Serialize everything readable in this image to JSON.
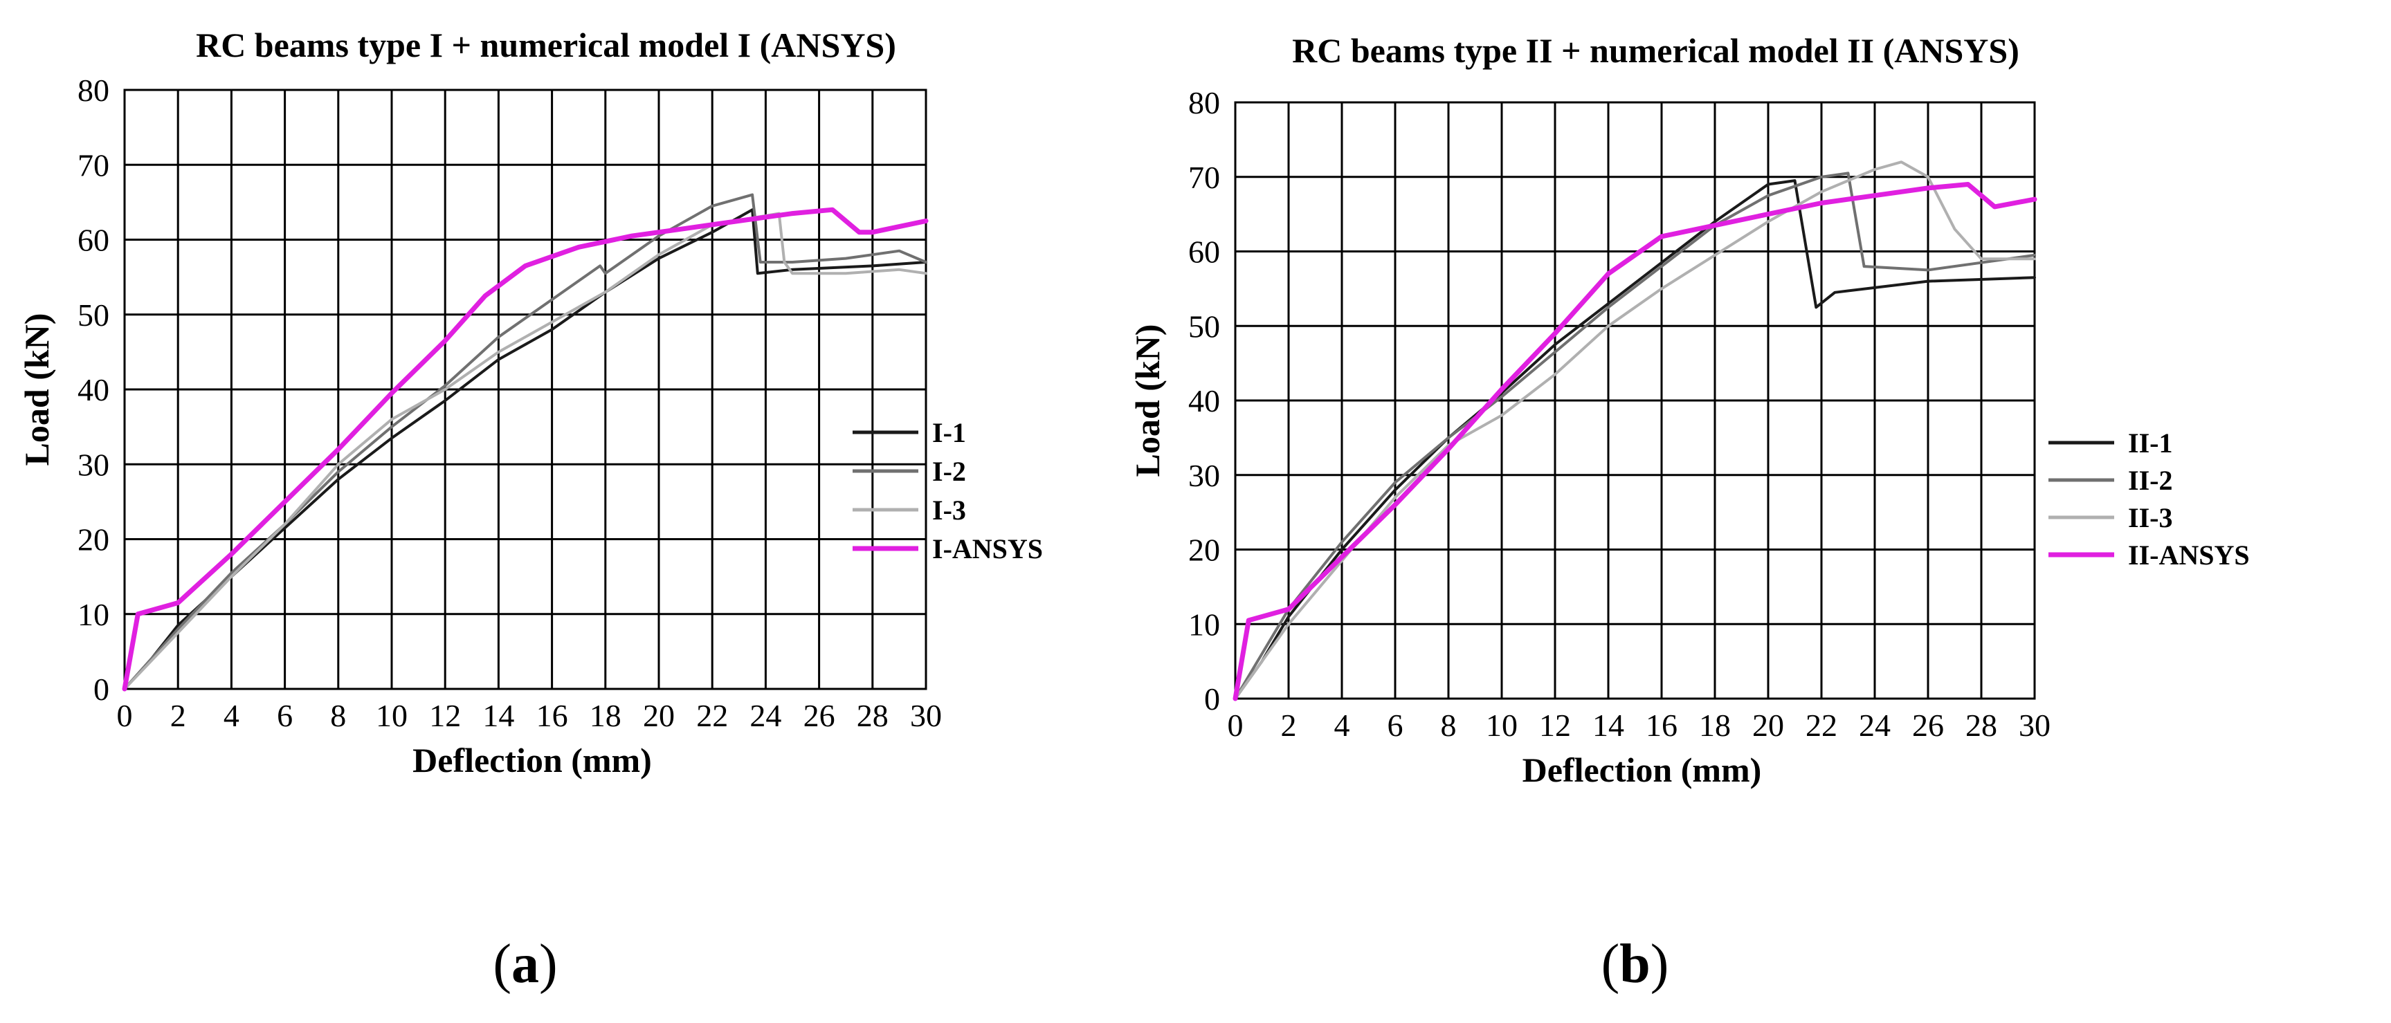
{
  "chart_data": [
    {
      "type": "line",
      "title": "RC beams type I + numerical model I (ANSYS)",
      "xlabel": "Deflection (mm)",
      "ylabel": "Load (kN)",
      "xlim": [
        0,
        30
      ],
      "ylim": [
        0,
        80
      ],
      "xticks": [
        "0",
        "2",
        "4",
        "6",
        "8",
        "10",
        "12",
        "14",
        "16",
        "18",
        "20",
        "22",
        "24",
        "26",
        "28",
        "30"
      ],
      "yticks": [
        "0",
        "10",
        "20",
        "30",
        "40",
        "50",
        "60",
        "70",
        "80"
      ],
      "grid": true,
      "legend_position": "right",
      "caption": {
        "open": "(",
        "letter": "a",
        "close": ")"
      },
      "series": [
        {
          "name": "I-1",
          "color": "#1a1a1a",
          "points": [
            [
              0,
              0
            ],
            [
              1,
              4
            ],
            [
              2,
              8.5
            ],
            [
              4,
              15
            ],
            [
              6,
              21.5
            ],
            [
              8,
              28
            ],
            [
              10,
              33.5
            ],
            [
              12,
              38.5
            ],
            [
              14,
              44
            ],
            [
              16,
              48
            ],
            [
              18,
              53
            ],
            [
              20,
              57.5
            ],
            [
              22,
              61
            ],
            [
              23.5,
              64
            ],
            [
              23.7,
              55.5
            ],
            [
              25,
              56
            ],
            [
              28,
              56.5
            ],
            [
              30,
              57
            ]
          ]
        },
        {
          "name": "I-2",
          "color": "#707070",
          "points": [
            [
              0,
              0
            ],
            [
              2,
              8
            ],
            [
              4,
              15.5
            ],
            [
              6,
              22
            ],
            [
              8,
              29
            ],
            [
              10,
              35
            ],
            [
              12,
              40.5
            ],
            [
              14,
              47
            ],
            [
              16,
              52
            ],
            [
              17.8,
              56.5
            ],
            [
              18,
              55.5
            ],
            [
              20,
              60.5
            ],
            [
              22,
              64.5
            ],
            [
              23.5,
              66
            ],
            [
              23.8,
              57
            ],
            [
              25,
              57
            ],
            [
              27,
              57.5
            ],
            [
              29,
              58.5
            ],
            [
              30,
              57
            ]
          ]
        },
        {
          "name": "I-3",
          "color": "#b0b0b0",
          "points": [
            [
              0,
              0
            ],
            [
              2,
              7.5
            ],
            [
              4,
              15
            ],
            [
              6,
              22
            ],
            [
              8,
              30
            ],
            [
              10,
              36
            ],
            [
              12,
              40
            ],
            [
              14,
              45
            ],
            [
              16,
              49
            ],
            [
              18,
              53
            ],
            [
              20,
              58
            ],
            [
              22,
              62
            ],
            [
              24.5,
              63.5
            ],
            [
              24.7,
              57
            ],
            [
              25,
              55.5
            ],
            [
              27,
              55.5
            ],
            [
              29,
              56
            ],
            [
              30,
              55.5
            ]
          ]
        },
        {
          "name": "I-ANSYS",
          "color": "#e020e0",
          "points": [
            [
              0,
              0
            ],
            [
              0.5,
              10
            ],
            [
              2,
              11.5
            ],
            [
              4,
              18
            ],
            [
              6,
              25
            ],
            [
              8,
              32
            ],
            [
              10,
              39.5
            ],
            [
              12,
              46.5
            ],
            [
              13.5,
              52.5
            ],
            [
              15,
              56.5
            ],
            [
              17,
              59
            ],
            [
              19,
              60.5
            ],
            [
              21,
              61.5
            ],
            [
              23,
              62.5
            ],
            [
              25,
              63.5
            ],
            [
              26.5,
              64
            ],
            [
              27.5,
              61
            ],
            [
              28,
              61
            ],
            [
              30,
              62.5
            ]
          ]
        }
      ]
    },
    {
      "type": "line",
      "title": "RC beams type II + numerical model II (ANSYS)",
      "xlabel": "Deflection (mm)",
      "ylabel": "Load (kN)",
      "xlim": [
        0,
        30
      ],
      "ylim": [
        0,
        80
      ],
      "xticks": [
        "0",
        "2",
        "4",
        "6",
        "8",
        "10",
        "12",
        "14",
        "16",
        "18",
        "20",
        "22",
        "24",
        "26",
        "28",
        "30"
      ],
      "yticks": [
        "0",
        "10",
        "20",
        "30",
        "40",
        "50",
        "60",
        "70",
        "80"
      ],
      "grid": true,
      "legend_position": "right",
      "caption": {
        "open": "(",
        "letter": "b",
        "close": ")"
      },
      "series": [
        {
          "name": "II-1",
          "color": "#1a1a1a",
          "points": [
            [
              0,
              0
            ],
            [
              1,
              5
            ],
            [
              2,
              11
            ],
            [
              4,
              20
            ],
            [
              6,
              28
            ],
            [
              8,
              35
            ],
            [
              10,
              41
            ],
            [
              12,
              47.5
            ],
            [
              14,
              53
            ],
            [
              16,
              58.5
            ],
            [
              18,
              64
            ],
            [
              20,
              69
            ],
            [
              21,
              69.5
            ],
            [
              21.8,
              52.5
            ],
            [
              22.5,
              54.5
            ],
            [
              26,
              56
            ],
            [
              30,
              56.5
            ]
          ]
        },
        {
          "name": "II-2",
          "color": "#707070",
          "points": [
            [
              0,
              0
            ],
            [
              2,
              12
            ],
            [
              4,
              21
            ],
            [
              6,
              29
            ],
            [
              8,
              35
            ],
            [
              10,
              40.5
            ],
            [
              12,
              46.5
            ],
            [
              14,
              52.5
            ],
            [
              16,
              58
            ],
            [
              18,
              63.5
            ],
            [
              20,
              67.5
            ],
            [
              22,
              70
            ],
            [
              23,
              70.5
            ],
            [
              23.6,
              58
            ],
            [
              26,
              57.5
            ],
            [
              28,
              58.5
            ],
            [
              30,
              59.5
            ]
          ]
        },
        {
          "name": "II-3",
          "color": "#b0b0b0",
          "points": [
            [
              0,
              0
            ],
            [
              2,
              10
            ],
            [
              4,
              18.5
            ],
            [
              6,
              27
            ],
            [
              8,
              34
            ],
            [
              10,
              38
            ],
            [
              12,
              43.5
            ],
            [
              14,
              50
            ],
            [
              16,
              55
            ],
            [
              18,
              59.5
            ],
            [
              20,
              64
            ],
            [
              22,
              68
            ],
            [
              24,
              71
            ],
            [
              25,
              72
            ],
            [
              26,
              70
            ],
            [
              27,
              63
            ],
            [
              28,
              59
            ],
            [
              30,
              59
            ]
          ]
        },
        {
          "name": "II-ANSYS",
          "color": "#e020e0",
          "points": [
            [
              0,
              0
            ],
            [
              0.5,
              10.5
            ],
            [
              2,
              12
            ],
            [
              4,
              19
            ],
            [
              6,
              26
            ],
            [
              8,
              33.5
            ],
            [
              10,
              41.5
            ],
            [
              12,
              49
            ],
            [
              14,
              57
            ],
            [
              16,
              62
            ],
            [
              18,
              63.5
            ],
            [
              20,
              65
            ],
            [
              22,
              66.5
            ],
            [
              24,
              67.5
            ],
            [
              26,
              68.5
            ],
            [
              27.5,
              69
            ],
            [
              28.5,
              66
            ],
            [
              30,
              67
            ]
          ]
        }
      ]
    }
  ]
}
